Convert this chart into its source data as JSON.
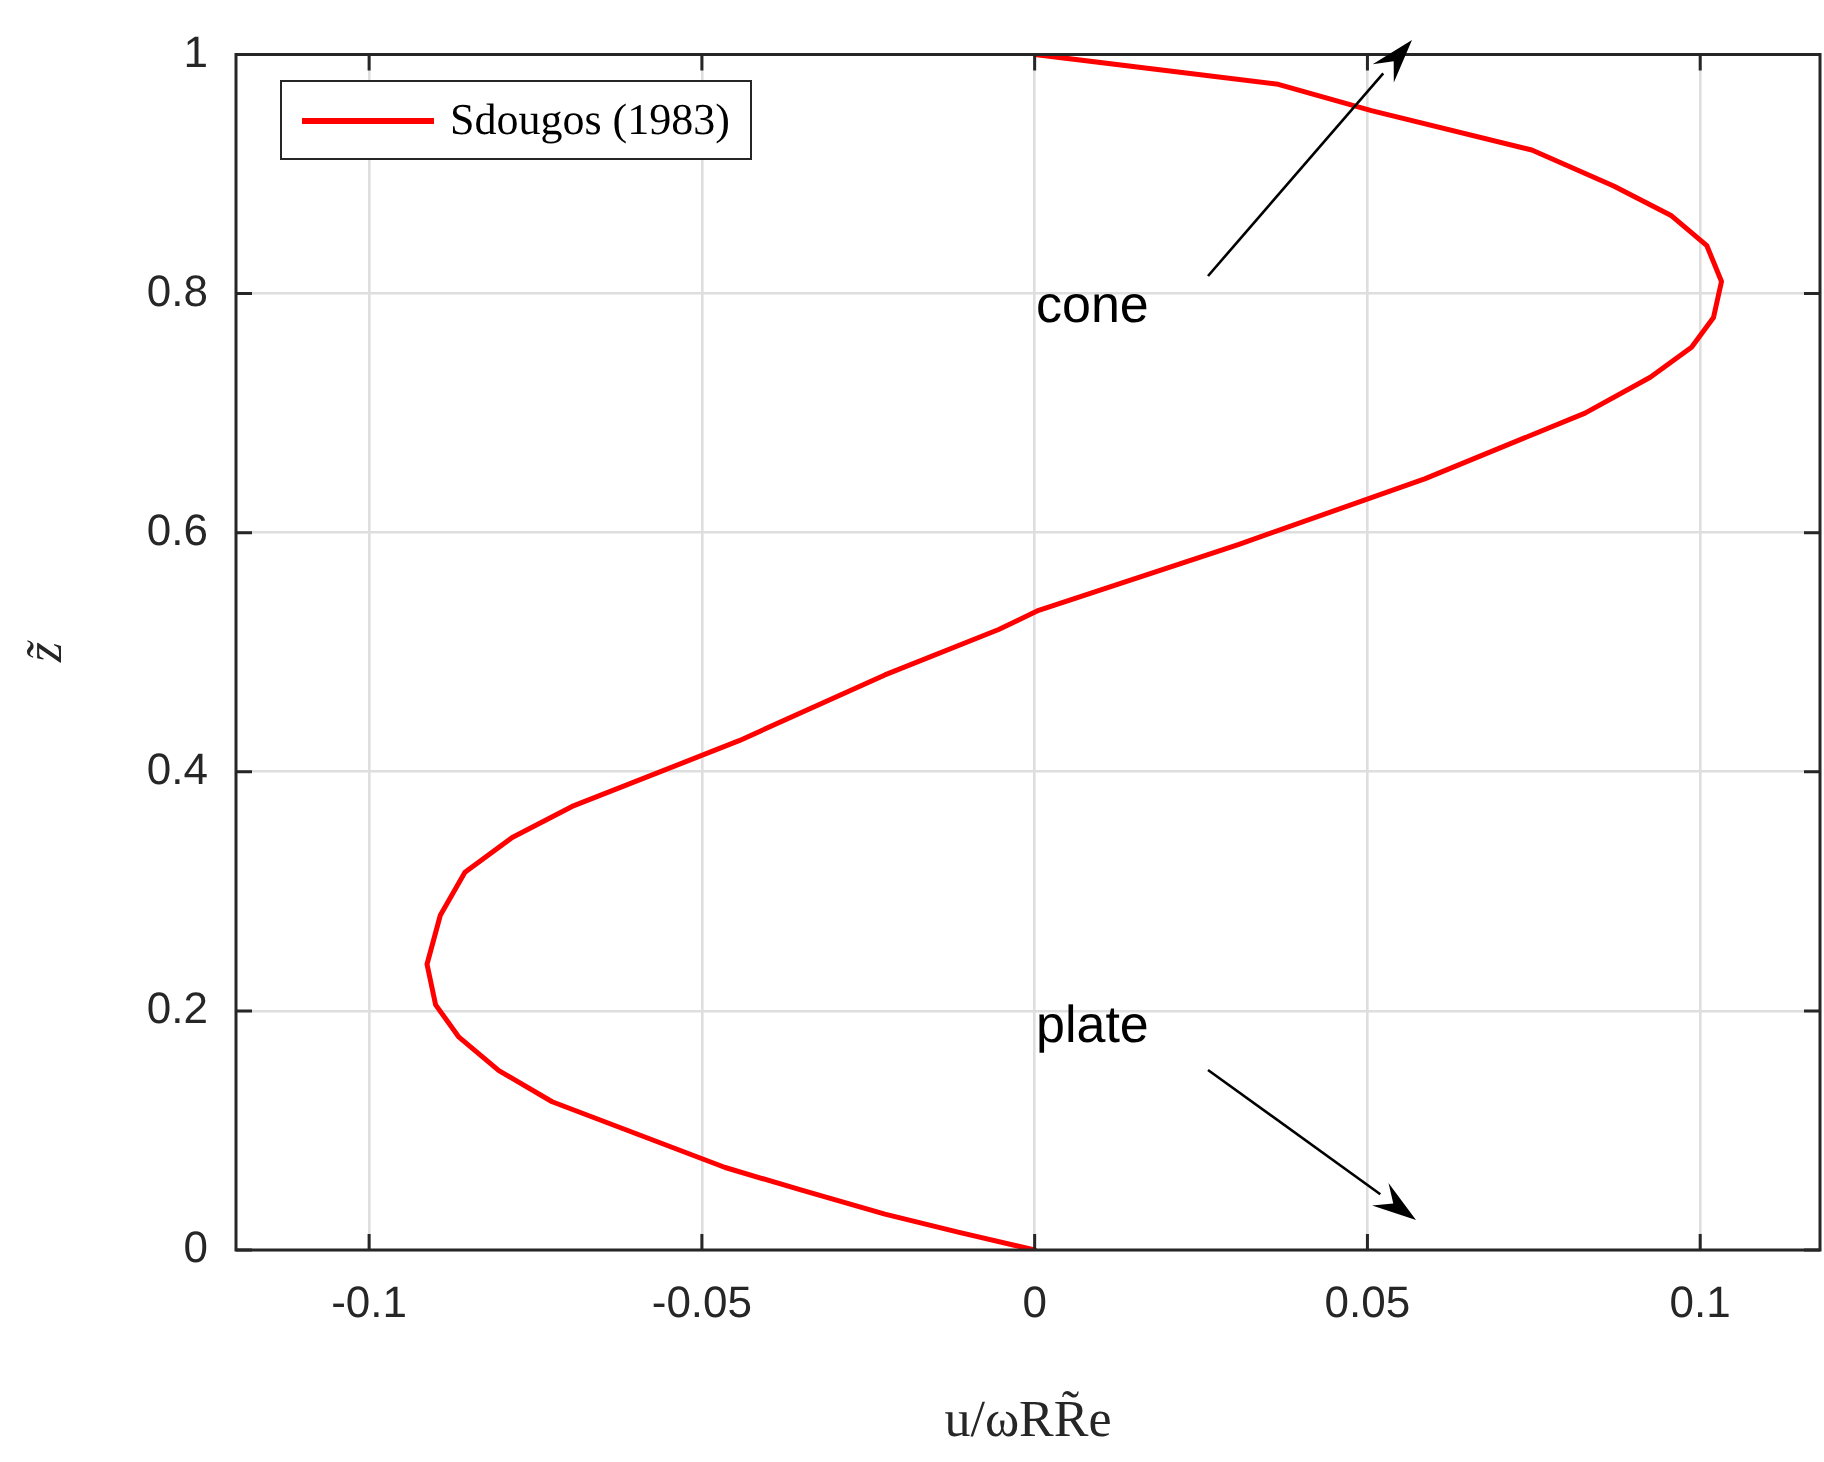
{
  "chart_data": {
    "type": "line",
    "xlabel": "u/ωRR̃e",
    "ylabel": "z̃",
    "x": [
      0,
      0.0366,
      0.0506,
      0.0747,
      0.087,
      0.0957,
      0.101,
      0.1032,
      0.102,
      0.0987,
      0.0925,
      0.0827,
      0.0586,
      0.0306,
      0.0006,
      -0.0054,
      -0.0225,
      -0.0444,
      -0.0695,
      -0.0785,
      -0.0856,
      -0.0893,
      -0.0913,
      -0.09,
      -0.0865,
      -0.0805,
      -0.0725,
      -0.0465,
      -0.035,
      -0.0225,
      -0.0115,
      0
    ],
    "series": [
      {
        "name": "Sdougos (1983)",
        "color": "#ff0000",
        "values": [
          1,
          0.975,
          0.953,
          0.92,
          0.89,
          0.865,
          0.84,
          0.81,
          0.78,
          0.755,
          0.73,
          0.7,
          0.645,
          0.59,
          0.535,
          0.519,
          0.481,
          0.426,
          0.371,
          0.345,
          0.316,
          0.28,
          0.239,
          0.205,
          0.178,
          0.15,
          0.124,
          0.069,
          0.05,
          0.03,
          0.015,
          0
        ]
      }
    ],
    "xlim": [
      -0.12,
      0.118
    ],
    "xticks": [
      -0.1,
      -0.05,
      0,
      0.05,
      0.1
    ],
    "ylim": [
      0,
      1
    ],
    "yticks": [
      0,
      0.2,
      0.4,
      0.6,
      0.8,
      1
    ],
    "grid": true,
    "legend": "top left",
    "marker": "none",
    "line_style": "solid",
    "annotations": [
      "cone",
      "plate"
    ]
  }
}
